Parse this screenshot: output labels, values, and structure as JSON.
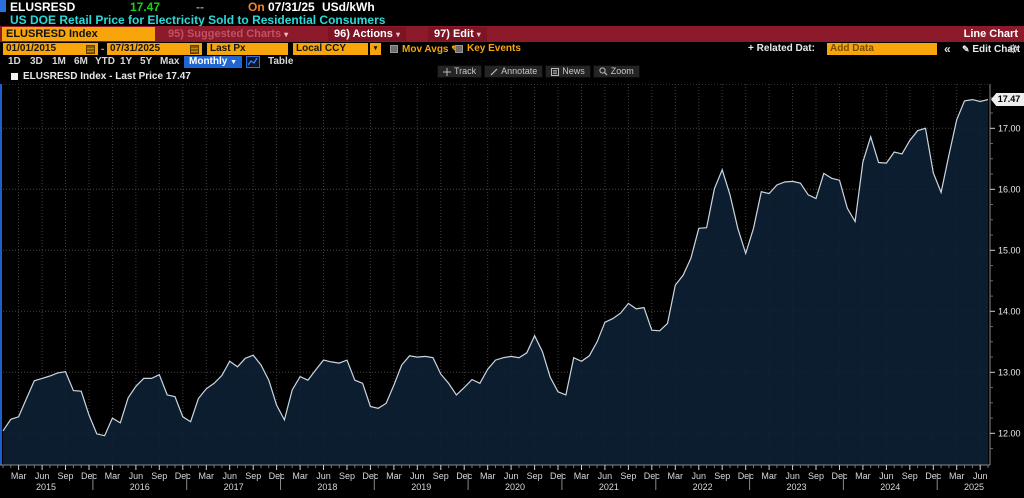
{
  "header": {
    "ticker": "ELUSRESD",
    "last_value": "17.47",
    "change": "--",
    "on_label": "On",
    "date": "07/31/25",
    "unit": "USd/kWh",
    "description": "US DOE Retail Price for Electricity Sold to Residential Consumers"
  },
  "menu_bar": {
    "security_field": "ELUSRESD Index",
    "suggested_charts": "95) Suggested Charts",
    "actions": "96) Actions",
    "edit": "97) Edit",
    "chart_type_label": "Line Chart"
  },
  "settings_bar": {
    "date_from": "01/01/2015",
    "range_dash": "-",
    "date_to": "07/31/2025",
    "price_field": "Last Px",
    "currency_field": "Local CCY",
    "mov_avgs_label": "Mov Avgs",
    "key_events_label": "Key Events",
    "related_data_label": "+ Related Dat:",
    "add_data_placeholder": "Add Data",
    "collapse_label": "«",
    "edit_chart_label": "Edit Chart"
  },
  "range_tabs": [
    "1D",
    "3D",
    "1M",
    "6M",
    "YTD",
    "1Y",
    "5Y",
    "Max"
  ],
  "period_dropdown": "Monthly",
  "table_button": "Table",
  "legend": "ELUSRESD Index - Last Price 17.47",
  "chart_toolbar": {
    "track": "Track",
    "annotate": "Annotate",
    "news": "News",
    "zoom": "Zoom"
  },
  "last_price_flag": "17.47",
  "chart_data": {
    "type": "area",
    "title": "ELUSRESD Index - Last Price",
    "frequency": "monthly",
    "start": "2015-01",
    "end": "2025-07",
    "last_price": 17.47,
    "unit": "USd/kWh",
    "ylim": [
      11.5,
      17.73
    ],
    "y_ticks": [
      12,
      13,
      14,
      15,
      16,
      17
    ],
    "x_quarter_labels": [
      "Mar",
      "Jun",
      "Sep",
      "Dec"
    ],
    "years": [
      2015,
      2016,
      2017,
      2018,
      2019,
      2020,
      2021,
      2022,
      2023,
      2024,
      2025
    ],
    "grid": true,
    "legend_position": "top-left",
    "colors": {
      "line": "#ccd6de",
      "fill": "#0e2137",
      "grid": "#474747",
      "accent_blue": "#2066d2",
      "amber": "#f7a50a",
      "menubar_red": "#8c1a2b"
    },
    "values": [
      12.04,
      12.23,
      12.27,
      12.57,
      12.86,
      12.9,
      12.94,
      12.99,
      13.01,
      12.7,
      12.69,
      12.3,
      11.99,
      11.96,
      12.25,
      12.17,
      12.58,
      12.77,
      12.9,
      12.9,
      12.96,
      12.63,
      12.6,
      12.27,
      12.19,
      12.57,
      12.73,
      12.82,
      12.95,
      13.18,
      13.09,
      13.23,
      13.28,
      13.12,
      12.87,
      12.46,
      12.22,
      12.71,
      12.93,
      12.87,
      13.04,
      13.2,
      13.17,
      13.15,
      13.2,
      12.87,
      12.82,
      12.44,
      12.41,
      12.49,
      12.79,
      13.12,
      13.27,
      13.25,
      13.26,
      13.24,
      12.97,
      12.82,
      12.63,
      12.75,
      12.88,
      12.82,
      13.05,
      13.2,
      13.24,
      13.26,
      13.24,
      13.32,
      13.6,
      13.34,
      12.92,
      12.68,
      12.63,
      13.24,
      13.18,
      13.27,
      13.5,
      13.82,
      13.88,
      13.97,
      14.13,
      14.04,
      14.06,
      13.69,
      13.68,
      13.8,
      14.43,
      14.59,
      14.87,
      15.36,
      15.37,
      16.01,
      16.32,
      15.91,
      15.36,
      14.95,
      15.36,
      15.96,
      15.93,
      16.07,
      16.12,
      16.13,
      16.1,
      15.91,
      15.85,
      16.26,
      16.18,
      16.15,
      15.69,
      15.47,
      16.45,
      16.86,
      16.44,
      16.43,
      16.61,
      16.58,
      16.8,
      16.96,
      17.0,
      16.27,
      15.95,
      16.56,
      17.14,
      17.45,
      17.47,
      17.44,
      17.47
    ]
  }
}
